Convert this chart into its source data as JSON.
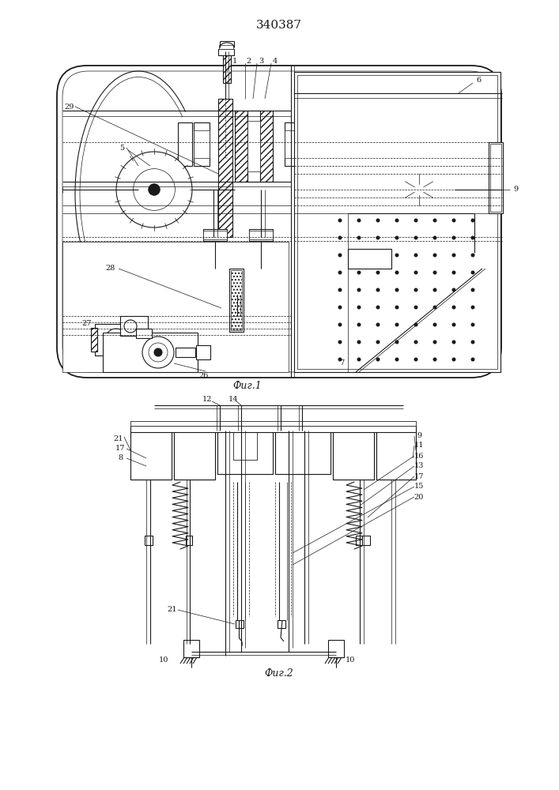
{
  "title": "340387",
  "fig1_caption": "Фиг.1",
  "fig2_caption": "Фиг.2",
  "bg_color": "#ffffff",
  "line_color": "#1a1a1a"
}
